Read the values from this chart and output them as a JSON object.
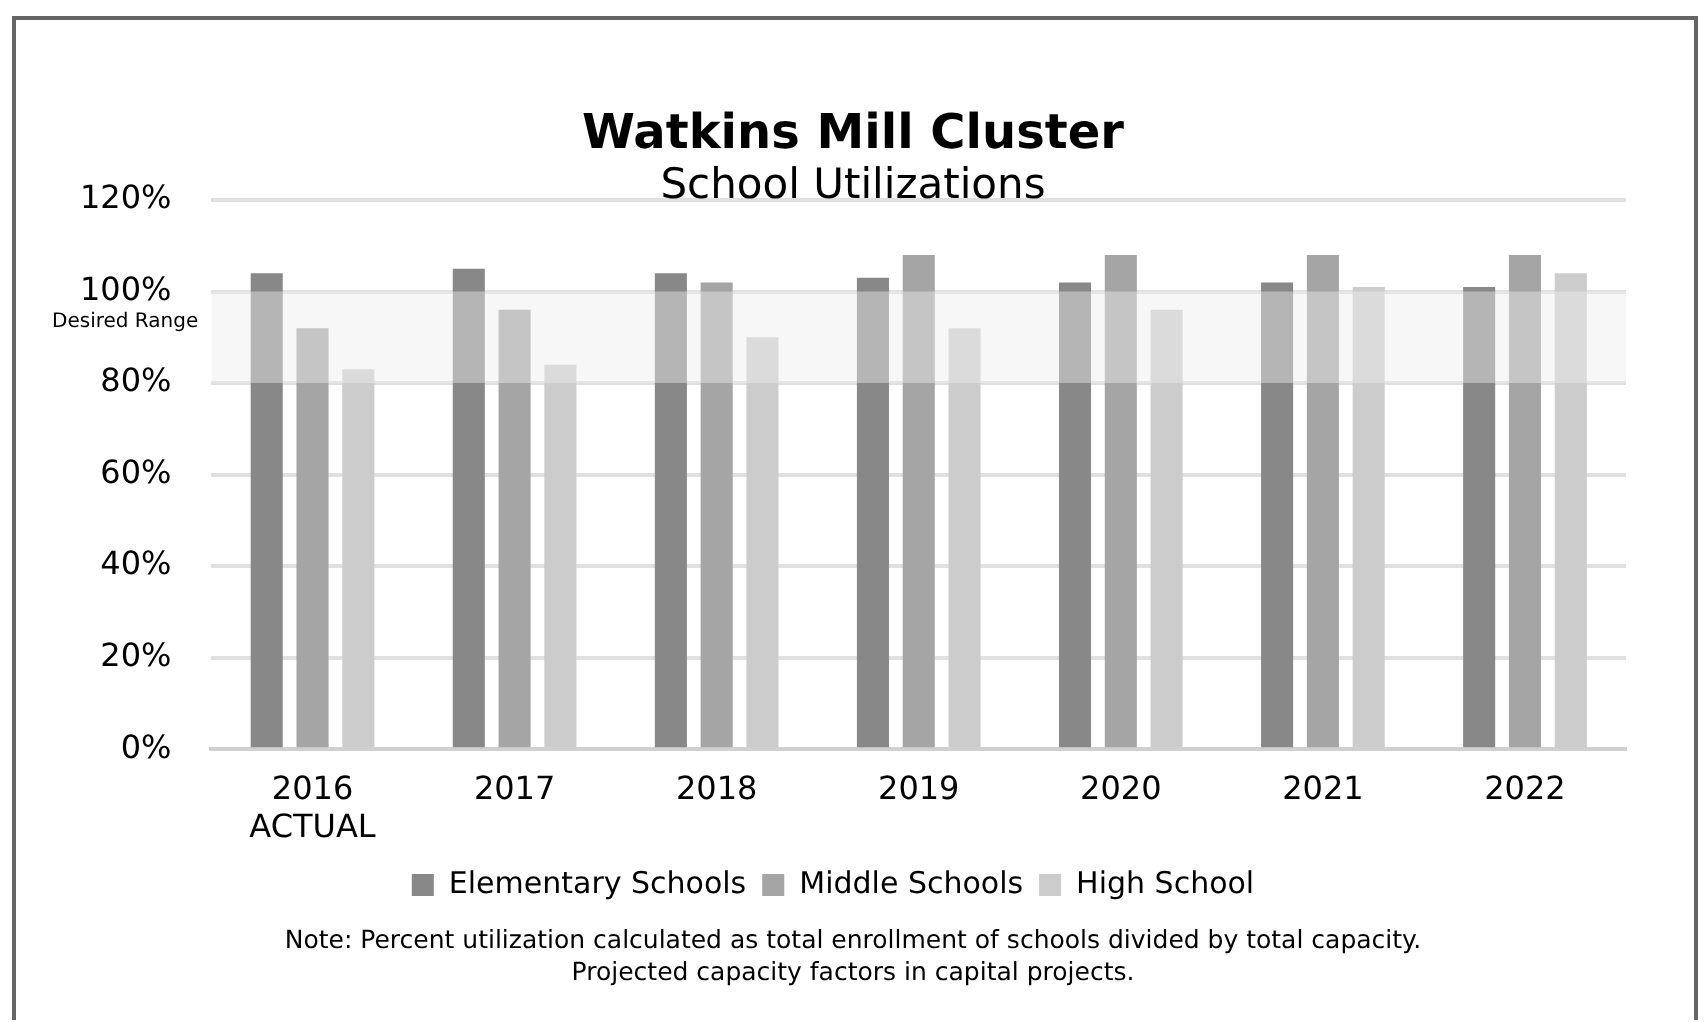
{
  "chart_data": {
    "type": "bar",
    "title": "Watkins Mill Cluster",
    "subtitle": "School Utilizations",
    "categories": [
      "2016\nACTUAL",
      "2017",
      "2018",
      "2019",
      "2020",
      "2021",
      "2022"
    ],
    "series": [
      {
        "name": "Elementary Schools",
        "color": "#888888",
        "values": [
          104,
          105,
          104,
          103,
          102,
          102,
          101
        ]
      },
      {
        "name": "Middle Schools",
        "color": "#a5a5a5",
        "values": [
          92,
          96,
          102,
          108,
          108,
          108,
          108
        ]
      },
      {
        "name": "High School",
        "color": "#cccccc",
        "values": [
          83,
          84,
          90,
          92,
          96,
          101,
          104
        ]
      }
    ],
    "ylim": [
      0,
      120
    ],
    "yticks": [
      {
        "value": 0,
        "label": "0%"
      },
      {
        "value": 20,
        "label": "20%"
      },
      {
        "value": 40,
        "label": "40%"
      },
      {
        "value": 60,
        "label": "60%"
      },
      {
        "value": 80,
        "label": "80%"
      },
      {
        "value": 100,
        "label": "100%"
      },
      {
        "value": 120,
        "label": "120%"
      }
    ],
    "grid": "y",
    "legend": "bottom",
    "bands": [
      {
        "axis": "y",
        "from": 80,
        "to": 100,
        "label": "Desired Range",
        "color": "#eeeeee"
      }
    ],
    "annotations": [
      "Note:  Percent utilization calculated as total enrollment of schools divided by total capacity.",
      "Projected capacity factors in capital projects."
    ]
  }
}
